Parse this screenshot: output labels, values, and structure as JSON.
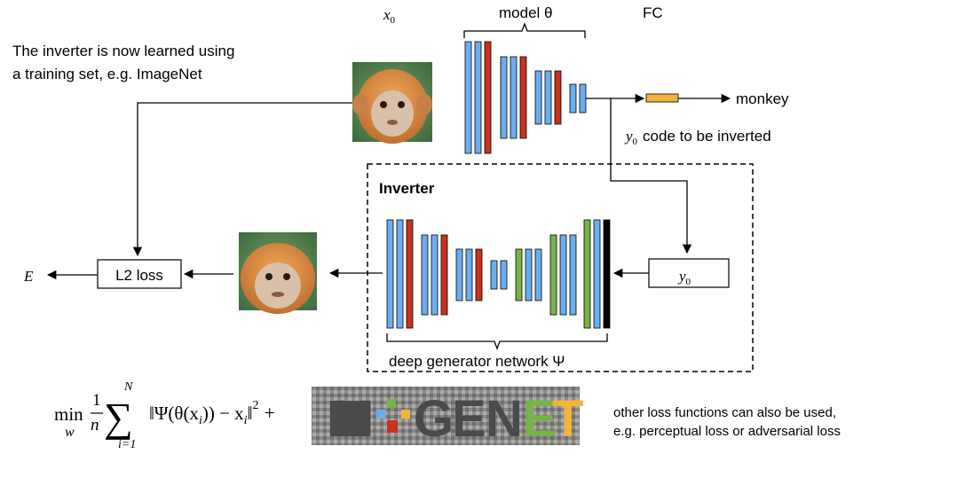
{
  "labels": {
    "x0": "x",
    "x0_sub": "0",
    "model": "model θ",
    "fc": "FC",
    "intro_line1": "The inverter is now learned using",
    "intro_line2": "a training set, e.g. ImageNet",
    "monkey": "monkey",
    "y0_code_var": "y",
    "y0_code_sub": "0",
    "y0_code_text": "code to be inverted",
    "inverter": "Inverter",
    "e": "E",
    "l2_loss": "L2 loss",
    "y0_box_var": "y",
    "y0_box_sub": "0",
    "generator": "deep generator network Ψ",
    "note_line1": "other loss functions can also be used,",
    "note_line2": "e.g. perceptual loss or adversarial loss"
  },
  "formula": {
    "min": "min",
    "w": "w",
    "one": "1",
    "n": "n",
    "N": "N",
    "i_eq_1": "i=1",
    "sigma": "∑",
    "body": "‖Ψ(θ(x",
    "i1": "i",
    "body2": ")) − x",
    "i2": "i",
    "body3": "‖",
    "sq": "2",
    "plus": "+"
  },
  "imagenet_logo": {
    "text": "IM GENET",
    "letters": [
      "I",
      "M",
      "G",
      "E",
      "N",
      "E",
      "T"
    ]
  },
  "colors": {
    "blue": "#6aaef0",
    "red": "#c8321e",
    "green": "#76b44a",
    "black": "#000000",
    "fc_box": "#f0b53a",
    "monkey_fur": "#d98b3c",
    "monkey_face": "#d9c0a8"
  }
}
